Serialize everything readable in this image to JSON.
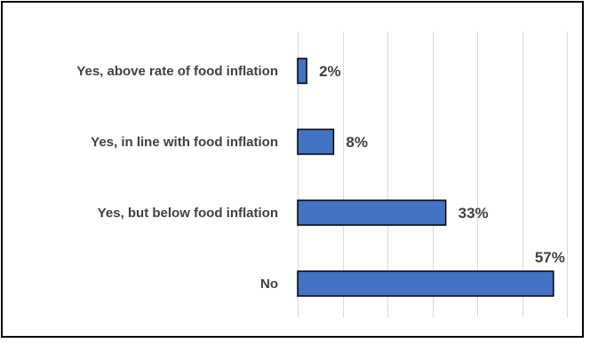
{
  "chart_data": {
    "type": "bar",
    "orientation": "horizontal",
    "categories": [
      "Yes, above rate of food inflation",
      "Yes, in line with food inflation",
      "Yes, but below food inflation",
      "No"
    ],
    "values": [
      2,
      8,
      33,
      57
    ],
    "data_labels": [
      "2%",
      "8%",
      "33%",
      "57%"
    ],
    "xlim": [
      0,
      60
    ],
    "x_grid_step": 10,
    "grid": true,
    "legend": "none",
    "bar_color": "#4472C4",
    "bar_edge_color": "#000000",
    "label_color": "#404040",
    "title": "",
    "xlabel": "",
    "ylabel": ""
  }
}
